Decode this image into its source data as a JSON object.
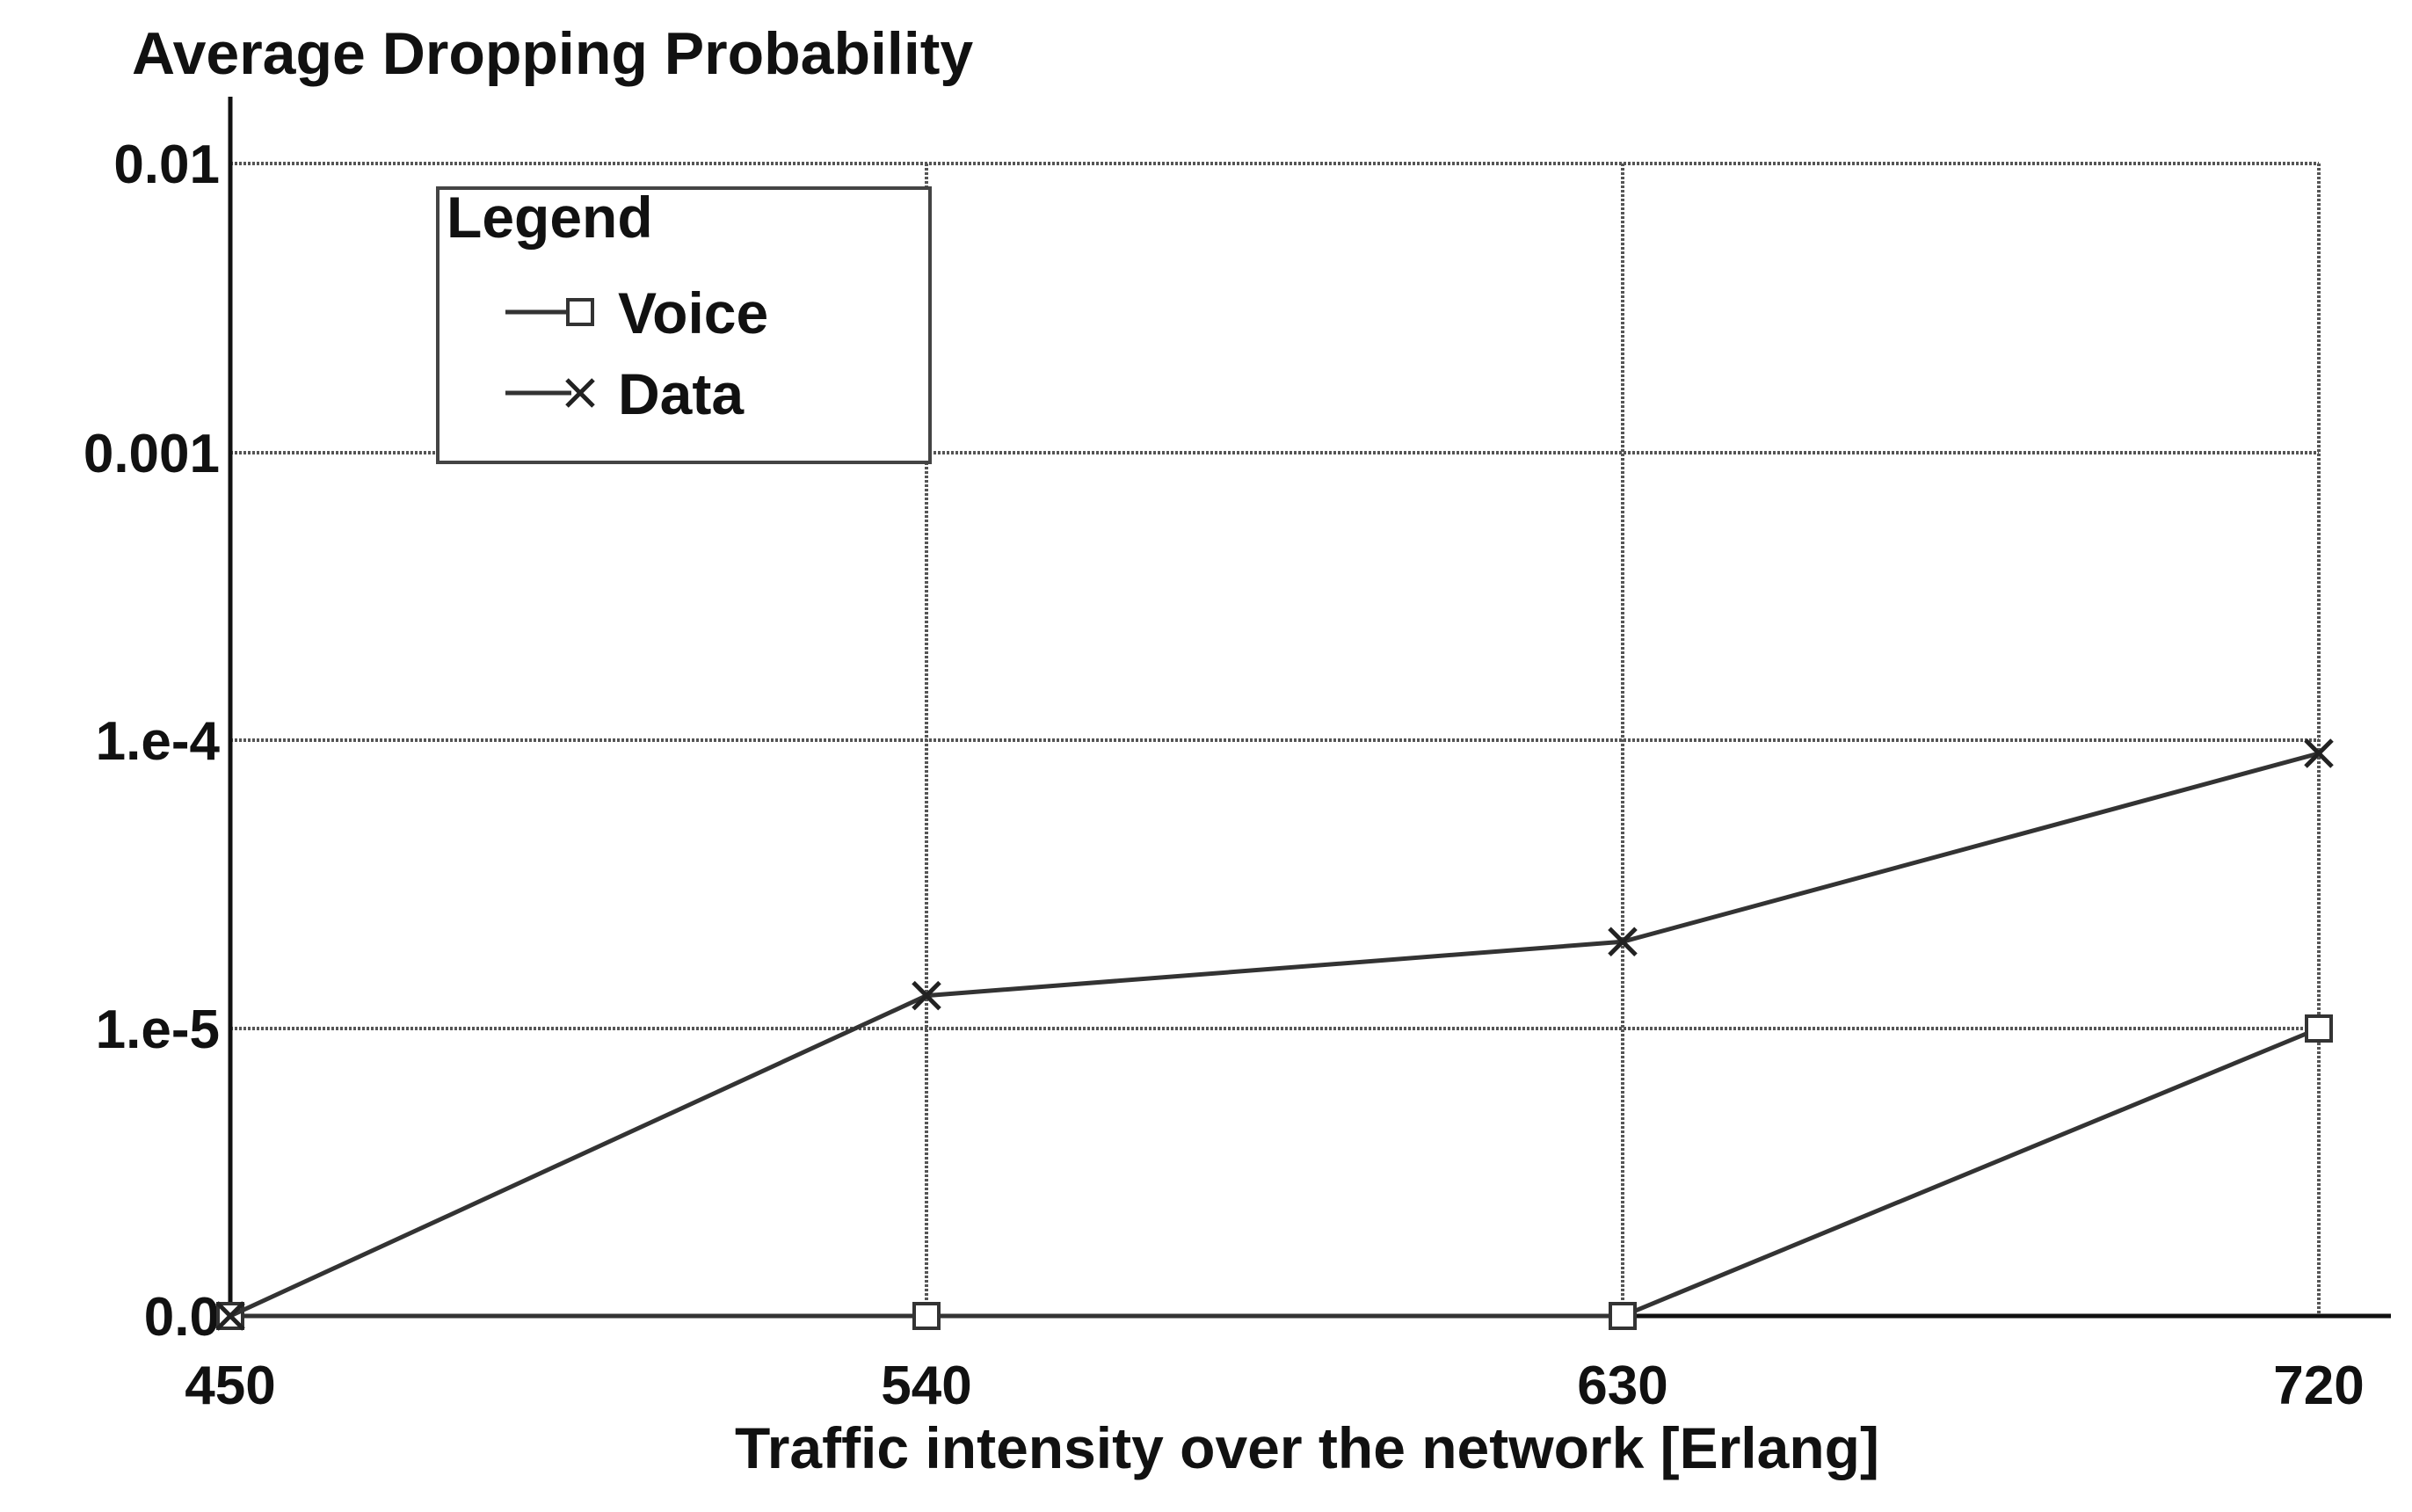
{
  "chart_data": {
    "type": "line",
    "title": "Average Dropping Probability",
    "xlabel": "Traffic intensity over the network [Erlang]",
    "ylabel": "",
    "x": [
      450,
      540,
      630,
      720
    ],
    "xticks": [
      "450",
      "540",
      "630",
      "720"
    ],
    "xlim": [
      450,
      720
    ],
    "yscale": "log (with 0.0 baseline)",
    "yticks": [
      "0.0",
      "1.e-5",
      "1.e-4",
      "0.001",
      "0.01"
    ],
    "ytick_values": [
      0,
      1e-05,
      0.0001,
      0.001,
      0.01
    ],
    "grid": true,
    "legend": {
      "title": "Legend",
      "position": "top-left",
      "entries": [
        "Voice",
        "Data"
      ]
    },
    "series": [
      {
        "name": "Voice",
        "marker": "square",
        "values": [
          0,
          0,
          0,
          1e-05
        ]
      },
      {
        "name": "Data",
        "marker": "x",
        "values": [
          0,
          1.3e-05,
          2e-05,
          9e-05
        ]
      }
    ],
    "colors": {
      "line": "#333333",
      "grid": "#555555",
      "text": "#111111"
    }
  }
}
